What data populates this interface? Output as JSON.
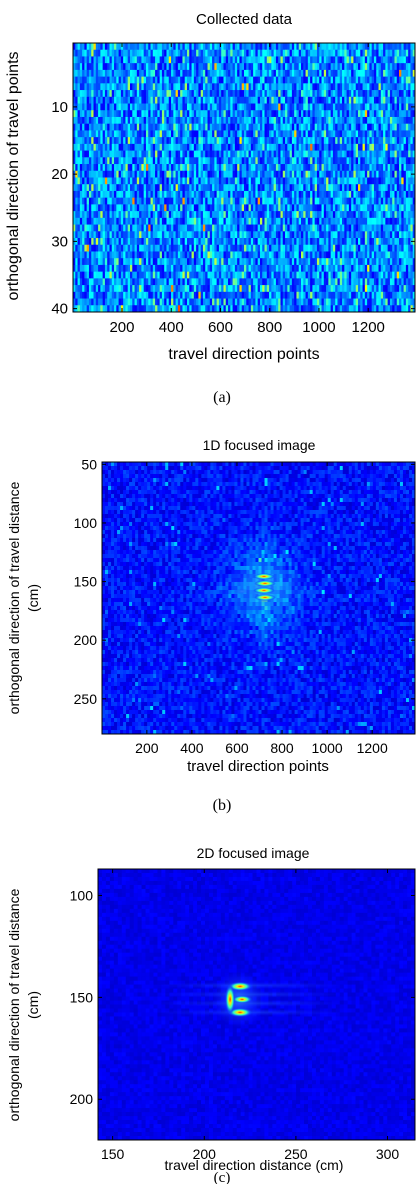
{
  "chart_data": [
    {
      "type": "heatmap",
      "panel_label": "(a)",
      "title": "Collected data",
      "xlabel": "travel direction points",
      "ylabel": "orthogonal direction of travel points",
      "xlim": [
        1,
        1390
      ],
      "ylim": [
        40.5,
        0.5
      ],
      "xticks": [
        "200",
        "400",
        "600",
        "800",
        "1000",
        "1200"
      ],
      "xtick_values": [
        200,
        400,
        600,
        800,
        1000,
        1200
      ],
      "yticks": [
        "10",
        "20",
        "30",
        "40"
      ],
      "ytick_values": [
        10,
        20,
        30,
        40
      ],
      "pattern": "random noise",
      "colormap": "jet"
    },
    {
      "type": "heatmap",
      "panel_label": "(b)",
      "title": "1D focused image",
      "xlabel": "travel direction points",
      "ylabel": "orthogonal direction of travel distance",
      "ylabel2": "(cm)",
      "xlim": [
        1,
        1390
      ],
      "ylim": [
        280,
        48
      ],
      "xticks": [
        "200",
        "400",
        "600",
        "800",
        "1000",
        "1200"
      ],
      "xtick_values": [
        200,
        400,
        600,
        800,
        1000,
        1200
      ],
      "yticks": [
        "50",
        "100",
        "150",
        "200",
        "250"
      ],
      "ytick_values": [
        50,
        100,
        150,
        200,
        250
      ],
      "pattern": "speckle noise with focused target",
      "target_center": [
        720,
        155
      ],
      "colormap": "jet"
    },
    {
      "type": "heatmap",
      "panel_label": "(c)",
      "title": "2D focused image",
      "xlabel": "travel direction distance (cm)",
      "ylabel": "orthogonal direction of travel distance",
      "ylabel2": "(cm)",
      "xlim": [
        142,
        315
      ],
      "ylim": [
        220,
        87
      ],
      "xticks": [
        "150",
        "200",
        "250",
        "300"
      ],
      "xtick_values": [
        150,
        200,
        250,
        300
      ],
      "yticks": [
        "100",
        "150",
        "200"
      ],
      "ytick_values": [
        100,
        150,
        200
      ],
      "pattern": "focused target on dark background",
      "target_center": [
        219,
        151
      ],
      "colormap": "jet"
    }
  ]
}
